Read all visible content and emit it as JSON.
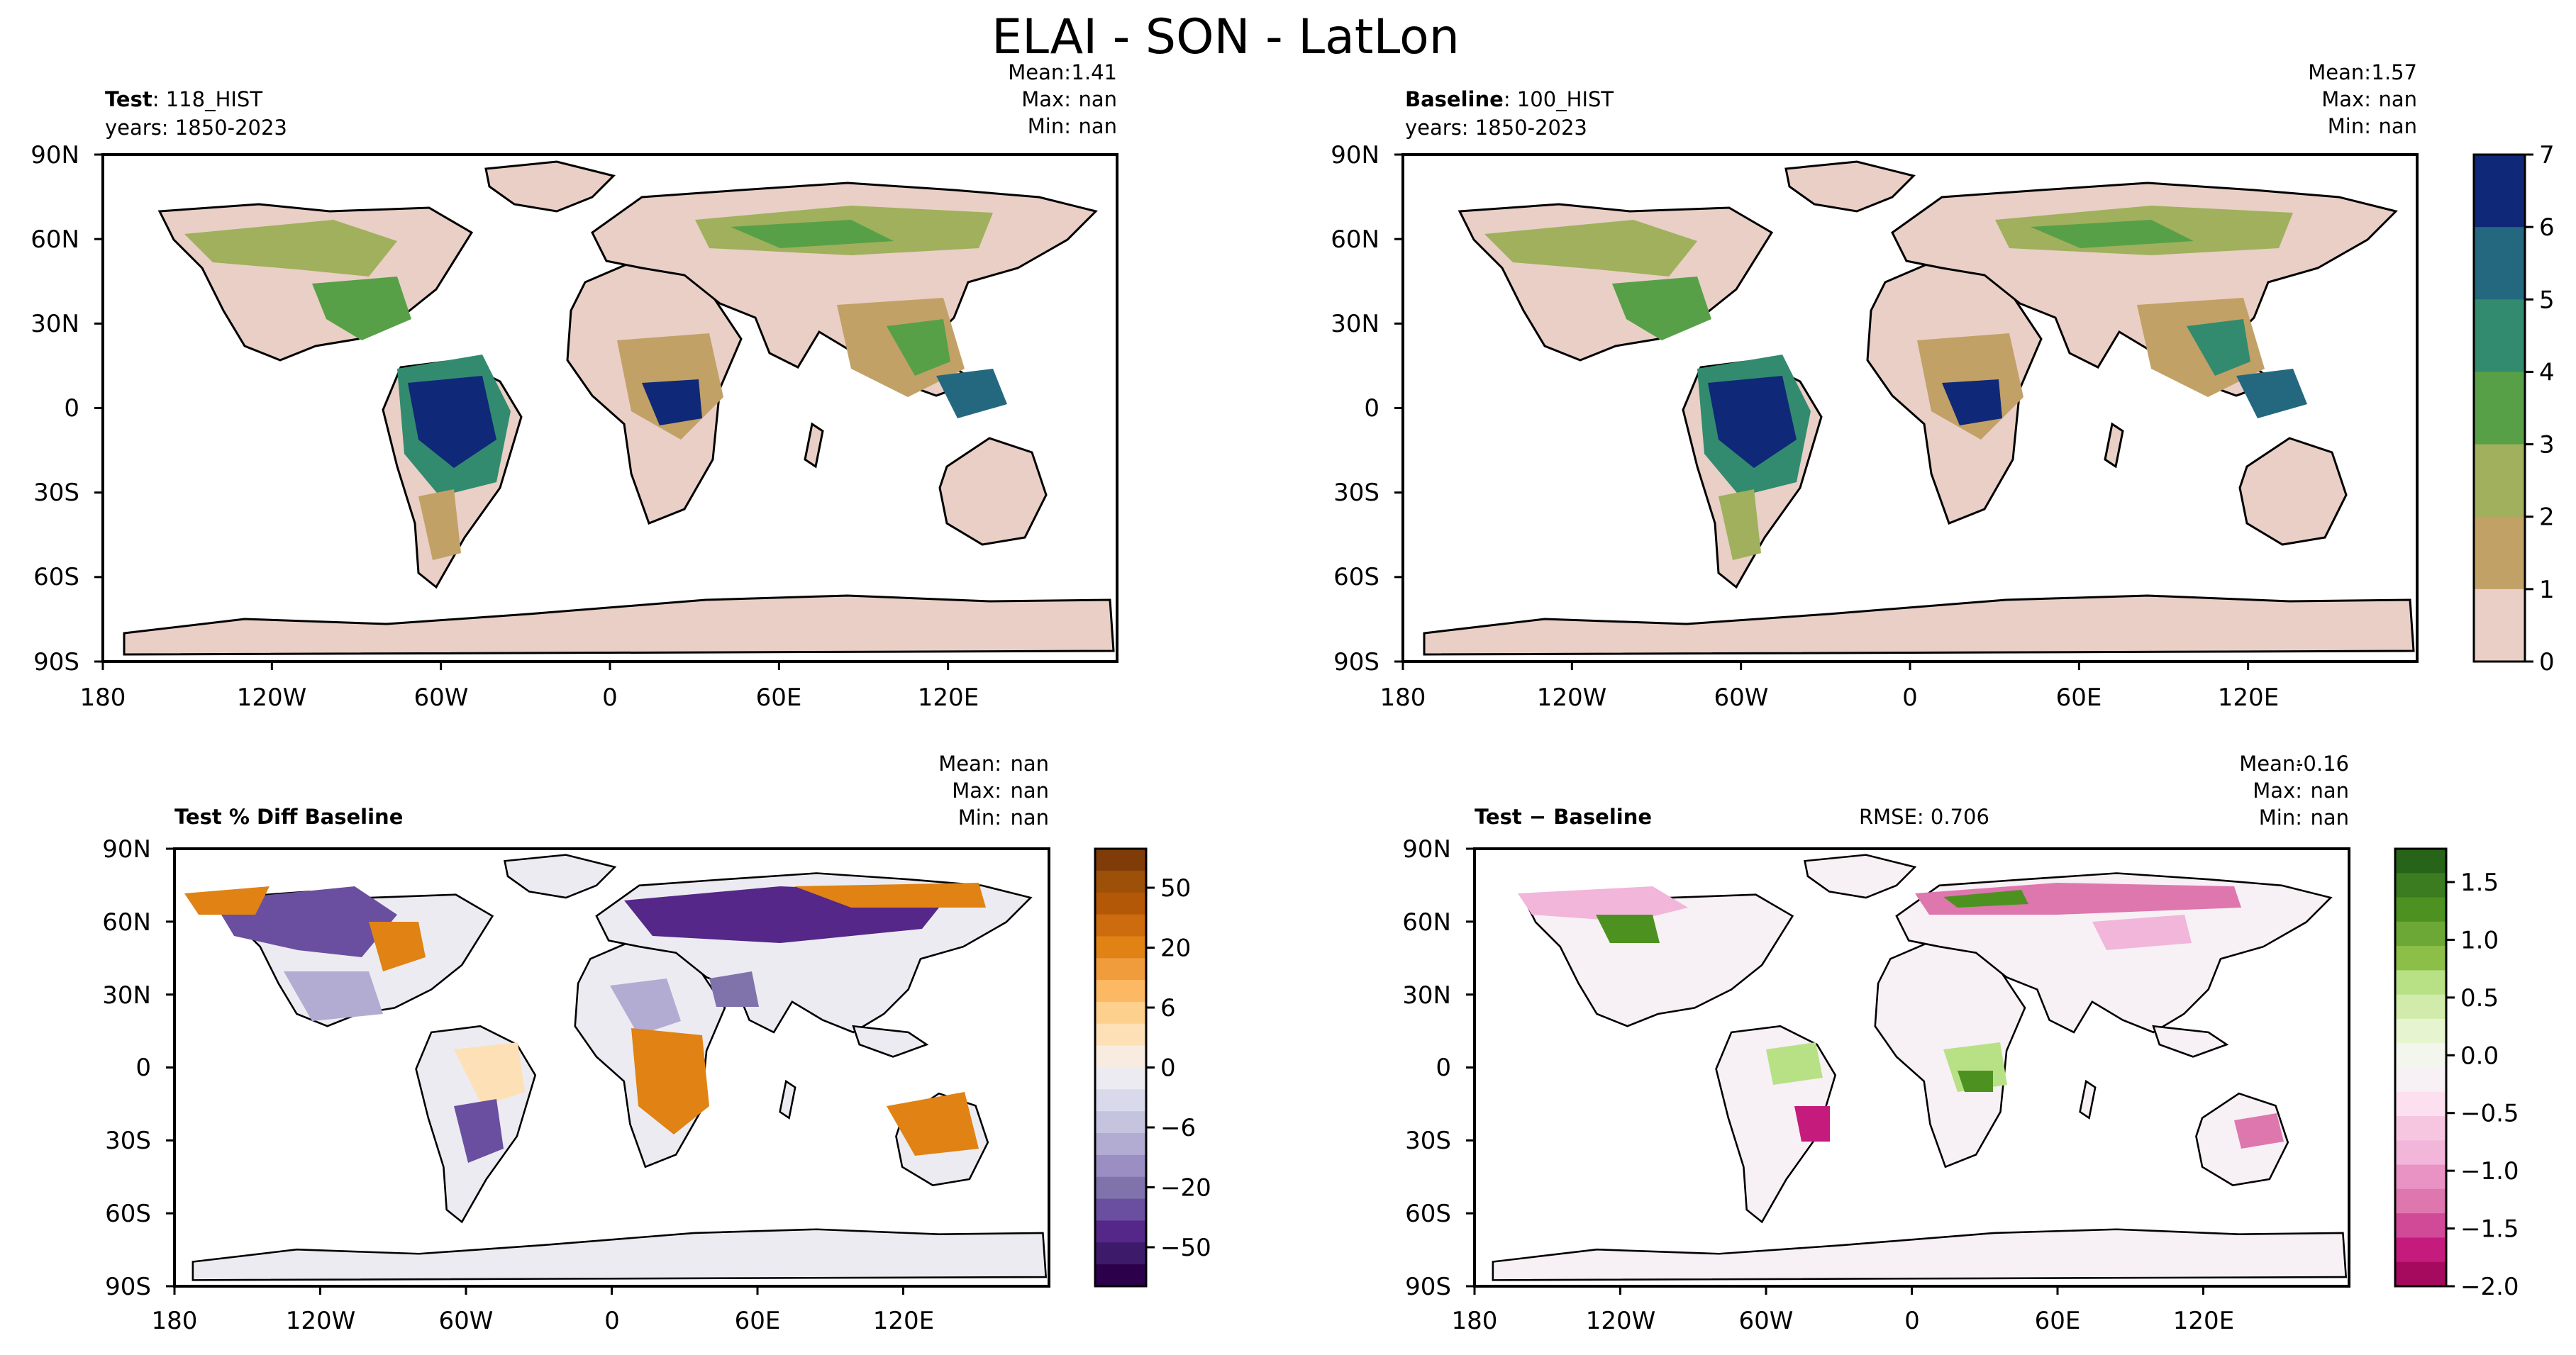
{
  "figure": {
    "title": "ELAI - SON - LatLon"
  },
  "x_ticks": [
    "180",
    "120W",
    "60W",
    "0",
    "60E",
    "120E"
  ],
  "y_ticks": [
    "90N",
    "60N",
    "30N",
    "0",
    "30S",
    "60S",
    "90S"
  ],
  "stat_labels": {
    "mean": "Mean:",
    "max": "Max:",
    "min": "Min:"
  },
  "panels": {
    "test": {
      "name_bold": "Test",
      "name_rest": ": 118_HIST",
      "years": "years: 1850-2023",
      "mean": "1.41",
      "max": "nan",
      "min": "nan"
    },
    "baseline": {
      "name_bold": "Baseline",
      "name_rest": ": 100_HIST",
      "years": "years: 1850-2023",
      "mean": "1.57",
      "max": "nan",
      "min": "nan"
    },
    "pct_diff": {
      "title": "Test % Diff Baseline",
      "mean": "nan",
      "max": "nan",
      "min": "nan"
    },
    "diff": {
      "title": "Test − Baseline",
      "rmse": "RMSE: 0.706",
      "mean": "-0.16",
      "max": "nan",
      "min": "nan"
    }
  },
  "chart_data": [
    {
      "type": "heatmap",
      "title": "Test: 118_HIST",
      "xlim": [
        -180,
        180
      ],
      "ylim": [
        -90,
        90
      ],
      "colorbar": {
        "ticks": [
          "0",
          "1",
          "2",
          "3",
          "4",
          "5",
          "6",
          "7"
        ],
        "levels": [
          0,
          1,
          2,
          3,
          4,
          5,
          6,
          7
        ],
        "colors": [
          "#e9cfc6",
          "#c2a166",
          "#a0b05c",
          "#57a048",
          "#328b6e",
          "#24687f",
          "#102878"
        ]
      },
      "stats": {
        "mean": 1.41,
        "max": "nan",
        "min": "nan"
      }
    },
    {
      "type": "heatmap",
      "title": "Baseline: 100_HIST",
      "xlim": [
        -180,
        180
      ],
      "ylim": [
        -90,
        90
      ],
      "colorbar_shared_with": 0,
      "stats": {
        "mean": 1.57,
        "max": "nan",
        "min": "nan"
      }
    },
    {
      "type": "heatmap",
      "title": "Test % Diff Baseline",
      "xlim": [
        -180,
        180
      ],
      "ylim": [
        -90,
        90
      ],
      "colorbar": {
        "ticks": [
          "50",
          "20",
          "6",
          "0",
          "−6",
          "−20",
          "−50"
        ],
        "colors": [
          "#7f3b08",
          "#9c5008",
          "#b35806",
          "#cd6b0f",
          "#e08214",
          "#f09c3c",
          "#fdb863",
          "#fdd08e",
          "#fee0b6",
          "#f7ecdf",
          "#ecebf1",
          "#d8daeb",
          "#c5c4de",
          "#b2abd2",
          "#9a8ec2",
          "#8073ac",
          "#6a4fa0",
          "#542788",
          "#3e1a6a",
          "#2d004b"
        ]
      },
      "stats": {
        "mean": "nan",
        "max": "nan",
        "min": "nan"
      }
    },
    {
      "type": "heatmap",
      "title": "Test − Baseline",
      "xlim": [
        -180,
        180
      ],
      "ylim": [
        -90,
        90
      ],
      "rmse": 0.706,
      "colorbar": {
        "ticks": [
          "1.5",
          "1.0",
          "0.5",
          "0.0",
          "−0.5",
          "−1.0",
          "−1.5",
          "−2.0"
        ],
        "colors": [
          "#276419",
          "#3a7c1f",
          "#4d9221",
          "#6ca835",
          "#8bbf48",
          "#b8e186",
          "#d1ecaa",
          "#e6f5d0",
          "#f2f6ec",
          "#f7f0f4",
          "#fde0ef",
          "#f6c6e0",
          "#f1b6da",
          "#e992c4",
          "#de77ae",
          "#d04a98",
          "#c51b7d",
          "#a50a5e"
        ]
      },
      "stats": {
        "mean": -0.16,
        "max": "nan",
        "min": "nan"
      }
    }
  ]
}
